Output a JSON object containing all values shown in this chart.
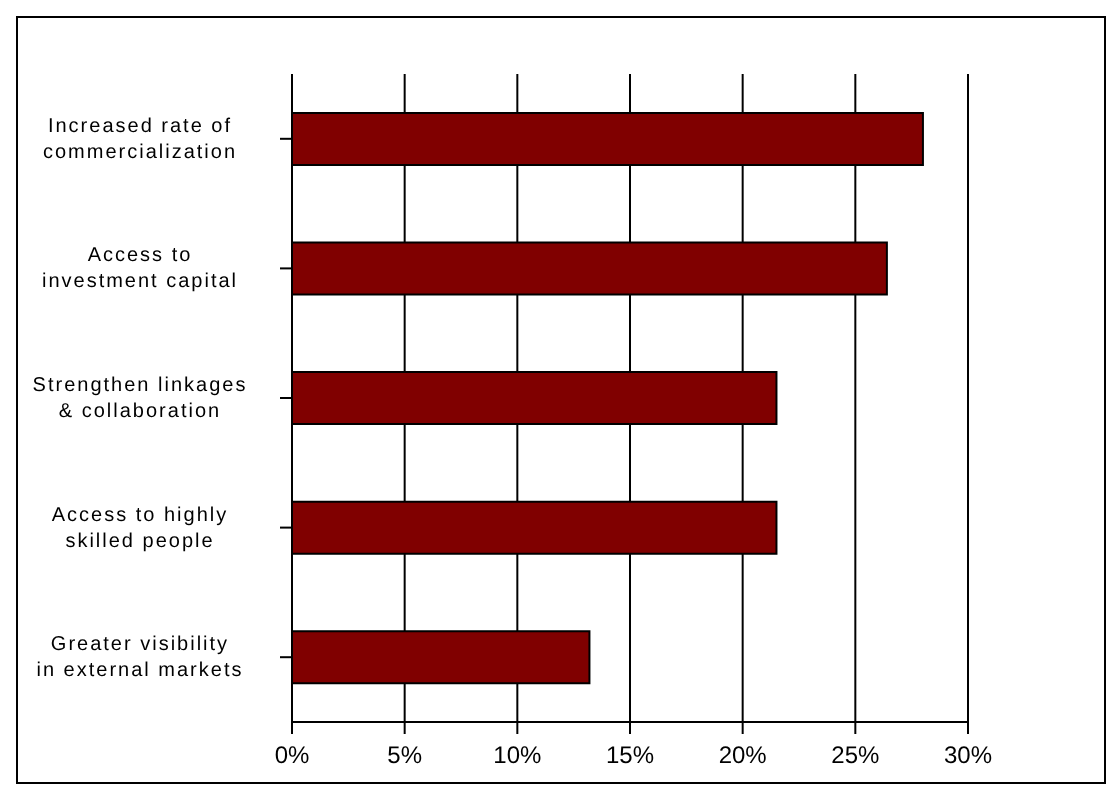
{
  "chart_data": {
    "type": "bar",
    "orientation": "horizontal",
    "categories": [
      "Increased rate of commercialization",
      "Access to investment capital",
      "Strengthen linkages & collaboration",
      "Access to highly skilled people",
      "Greater visibility in external markets"
    ],
    "values": [
      28.0,
      26.4,
      21.5,
      21.5,
      13.2
    ],
    "color": "#800000",
    "xlim": [
      0,
      30
    ],
    "xticks": [
      {
        "value": 0,
        "label": "0%"
      },
      {
        "value": 5,
        "label": "5%"
      },
      {
        "value": 10,
        "label": "10%"
      },
      {
        "value": 15,
        "label": "15%"
      },
      {
        "value": 20,
        "label": "20%"
      },
      {
        "value": 25,
        "label": "25%"
      },
      {
        "value": 30,
        "label": "30%"
      }
    ],
    "grid": "x",
    "legend": false
  }
}
